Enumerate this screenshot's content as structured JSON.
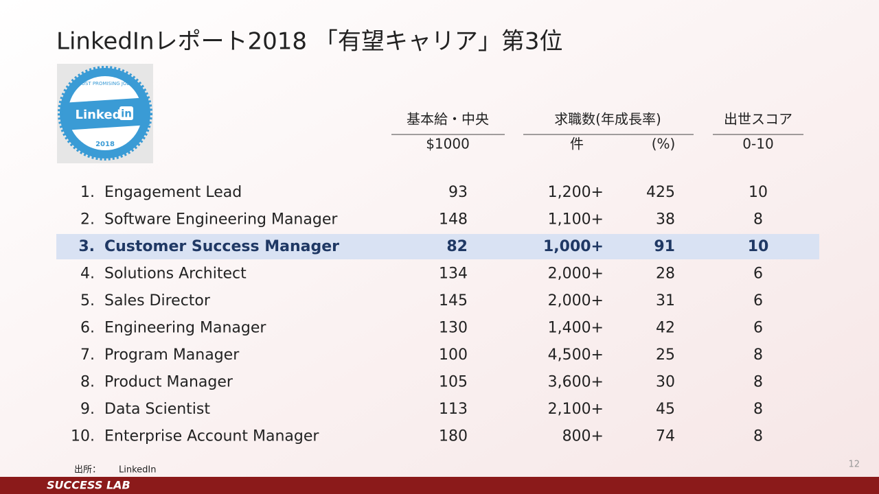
{
  "header": {
    "title": "LinkedInレポート2018 「有望キャリア」第3位"
  },
  "badge": {
    "top_text": "MOST PROMISING JOBS",
    "brand": "Linked",
    "brand_box": "in",
    "year": "2018"
  },
  "table": {
    "headers": [
      {
        "text": "基本給・中央",
        "sub": [
          "$1000"
        ]
      },
      {
        "text": "求職数(年成長率)",
        "sub": [
          "件",
          "(%)"
        ]
      },
      {
        "text": "出世スコア",
        "sub": [
          "0-10"
        ]
      }
    ],
    "rows": [
      {
        "rank": "1.",
        "name": "Engagement Lead",
        "salary": "93",
        "jobs": "1,200+",
        "growth": "425",
        "score": "10"
      },
      {
        "rank": "2.",
        "name": "Software Engineering Manager",
        "salary": "148",
        "jobs": "1,100+",
        "growth": "38",
        "score": "8"
      },
      {
        "rank": "3.",
        "name": "Customer Success Manager",
        "salary": "82",
        "jobs": "1,000+",
        "growth": "91",
        "score": "10",
        "highlighted": true
      },
      {
        "rank": "4.",
        "name": "Solutions Architect",
        "salary": "134",
        "jobs": "2,000+",
        "growth": "28",
        "score": "6"
      },
      {
        "rank": "5.",
        "name": "Sales Director",
        "salary": "145",
        "jobs": "2,000+",
        "growth": "31",
        "score": "6"
      },
      {
        "rank": "6.",
        "name": "Engineering Manager",
        "salary": "130",
        "jobs": "1,400+",
        "growth": "42",
        "score": "6"
      },
      {
        "rank": "7.",
        "name": "Program Manager",
        "salary": "100",
        "jobs": "4,500+",
        "growth": "25",
        "score": "8"
      },
      {
        "rank": "8.",
        "name": "Product Manager",
        "salary": "105",
        "jobs": "3,600+",
        "growth": "30",
        "score": "8"
      },
      {
        "rank": "9.",
        "name": "Data Scientist",
        "salary": "113",
        "jobs": "2,100+",
        "growth": "45",
        "score": "8"
      },
      {
        "rank": "10.",
        "name": "Enterprise Account Manager",
        "salary": "180",
        "jobs": "800+",
        "growth": "74",
        "score": "8"
      }
    ]
  },
  "footer": {
    "source_label": "出所：",
    "source": "LinkedIn",
    "page": "12",
    "brand": "SUCCESS LAB"
  }
}
